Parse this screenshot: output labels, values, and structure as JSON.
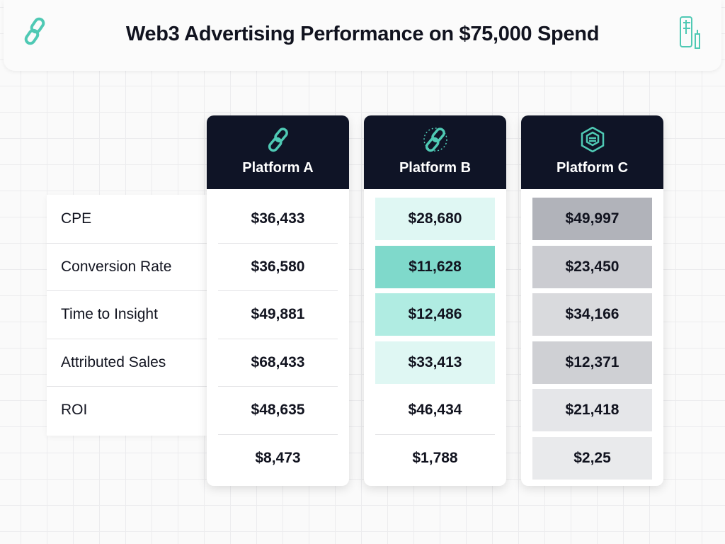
{
  "header": {
    "title": "Web3 Advertising Performance on $75,000 Spend",
    "left_icon": "chain-link-icon",
    "right_icon": "phone-bottle-icon"
  },
  "colors": {
    "accent": "#4fc9b4",
    "card_header": "#0f1426"
  },
  "chart_data": {
    "type": "table",
    "title": "Web3 Advertising Performance on $75,000 Spend",
    "row_labels": [
      "CPE",
      "Conversion Rate",
      "Time to Insight",
      "Attributed Sales",
      "ROI",
      ""
    ],
    "columns": [
      {
        "name": "Platform A",
        "icon": "chain-link-icon",
        "values": [
          "$36,433",
          "$36,580",
          "$49,881",
          "$68,433",
          "$48,635",
          "$8,473"
        ],
        "highlights": [
          null,
          null,
          null,
          null,
          null,
          null
        ]
      },
      {
        "name": "Platform B",
        "icon": "dotted-chain-link-icon",
        "values": [
          "$28,680",
          "$11,628",
          "$12,486",
          "$33,413",
          "$46,434",
          "$1,788"
        ],
        "highlights": [
          "#dff7f3",
          "#7fd9cb",
          "#b0ece2",
          "#dff7f3",
          null,
          null
        ]
      },
      {
        "name": "Platform C",
        "icon": "hexagon-cube-icon",
        "values": [
          "$49,997",
          "$23,450",
          "$34,166",
          "$12,371",
          "$21,418",
          "$2,25"
        ],
        "highlights": [
          "#b1b3ba",
          "#cbccd1",
          "#d9dadd",
          "#cfd0d4",
          "#e5e6e9",
          "#e9eaec"
        ]
      }
    ]
  }
}
